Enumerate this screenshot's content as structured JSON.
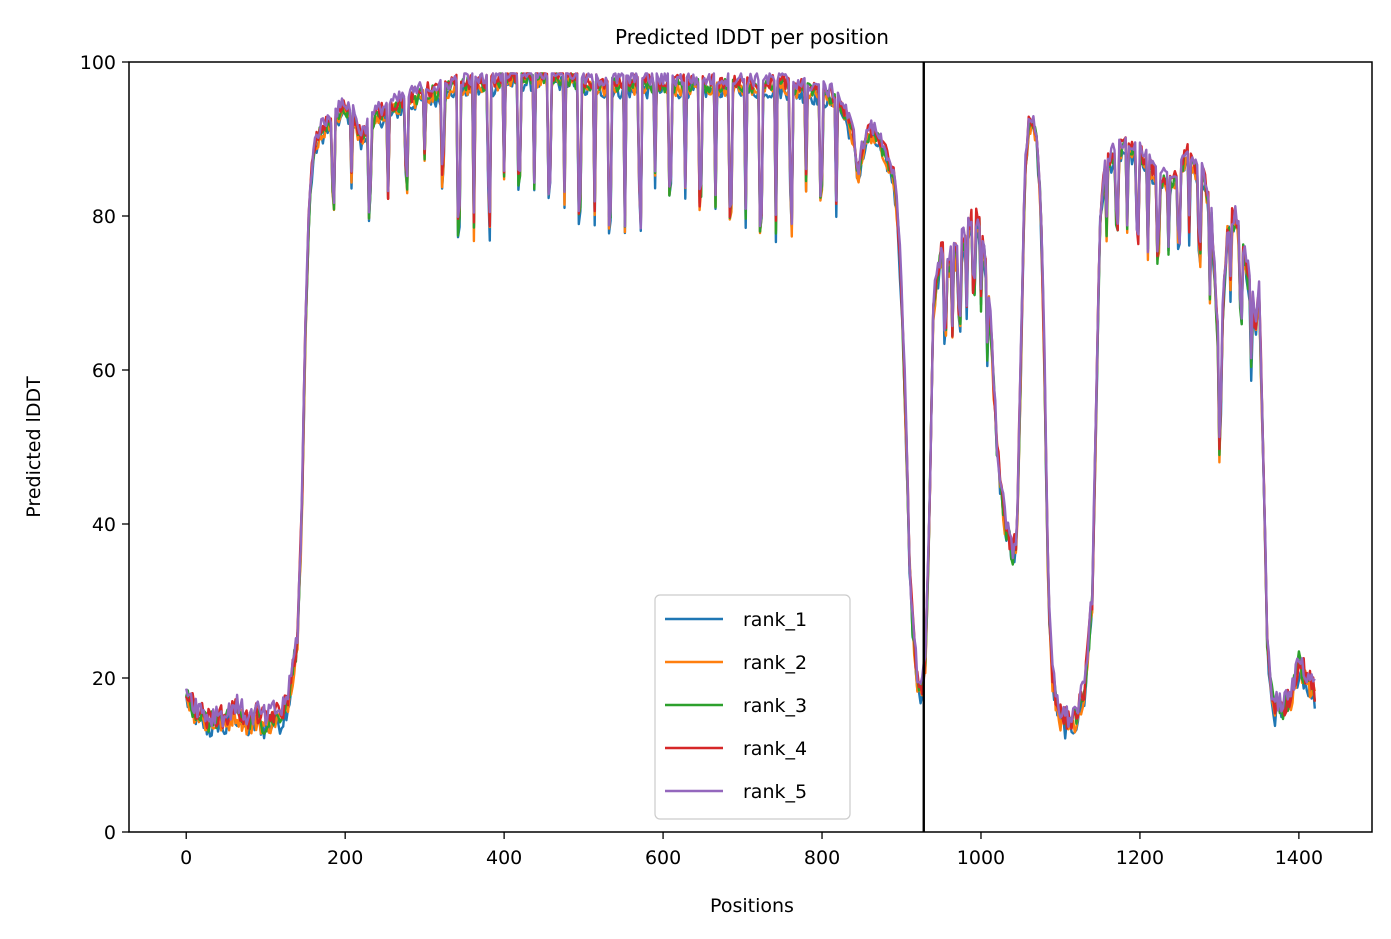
{
  "chart_data": {
    "type": "line",
    "title": "Predicted lDDT per position",
    "xlabel": "Positions",
    "ylabel": "Predicted lDDT",
    "xlim": [
      -72,
      1492
    ],
    "ylim": [
      0,
      100
    ],
    "xticks": [
      0,
      200,
      400,
      600,
      800,
      1000,
      1200,
      1400
    ],
    "yticks": [
      0,
      20,
      40,
      60,
      80,
      100
    ],
    "grid": false,
    "legend_position": "lower center",
    "vline_x": 928,
    "colors": {
      "rank_1": "#1f77b4",
      "rank_2": "#ff7f0e",
      "rank_3": "#2ca02c",
      "rank_4": "#d62728",
      "rank_5": "#9467bd",
      "vline": "#000000"
    },
    "profile": {
      "x": [
        0,
        5,
        10,
        20,
        30,
        40,
        50,
        60,
        70,
        80,
        90,
        100,
        110,
        120,
        130,
        140,
        145,
        150,
        155,
        160,
        165,
        170,
        180,
        190,
        200,
        210,
        220,
        240,
        260,
        280,
        300,
        320,
        340,
        360,
        380,
        400,
        420,
        440,
        460,
        480,
        500,
        550,
        600,
        650,
        700,
        750,
        800,
        820,
        830,
        840,
        845,
        850,
        860,
        870,
        880,
        890,
        895,
        900,
        905,
        910,
        915,
        920,
        925,
        930,
        935,
        940,
        945,
        950,
        960,
        970,
        980,
        990,
        1000,
        1010,
        1020,
        1030,
        1040,
        1045,
        1050,
        1055,
        1060,
        1065,
        1070,
        1075,
        1080,
        1085,
        1090,
        1095,
        1100,
        1110,
        1120,
        1130,
        1140,
        1145,
        1150,
        1155,
        1160,
        1170,
        1180,
        1200,
        1220,
        1240,
        1260,
        1270,
        1280,
        1290,
        1300,
        1310,
        1320,
        1330,
        1340,
        1345,
        1350,
        1355,
        1360,
        1365,
        1370,
        1380,
        1390,
        1400,
        1410,
        1420
      ],
      "y": [
        18,
        17,
        16,
        15,
        14,
        15,
        14,
        16,
        15,
        14,
        15,
        14,
        15,
        15,
        18,
        25,
        40,
        65,
        82,
        88,
        90,
        91,
        92,
        93,
        94,
        93,
        90,
        93,
        94,
        95,
        96,
        96,
        97,
        97,
        97,
        98,
        98,
        98,
        98,
        98,
        97,
        97,
        97,
        97,
        97,
        97,
        96,
        95,
        93,
        90,
        85,
        88,
        91,
        90,
        88,
        85,
        80,
        70,
        55,
        35,
        25,
        20,
        18,
        22,
        40,
        68,
        72,
        75,
        74,
        75,
        77,
        80,
        78,
        70,
        50,
        40,
        36,
        38,
        60,
        85,
        92,
        92,
        90,
        82,
        60,
        30,
        20,
        17,
        15,
        14,
        15,
        18,
        30,
        55,
        80,
        85,
        87,
        88,
        89,
        88,
        85,
        84,
        88,
        86,
        85,
        80,
        60,
        78,
        80,
        75,
        70,
        65,
        70,
        50,
        25,
        18,
        16,
        16,
        17,
        22,
        20,
        18
      ]
    },
    "series": [
      {
        "name": "rank_1"
      },
      {
        "name": "rank_2"
      },
      {
        "name": "rank_3"
      },
      {
        "name": "rank_4"
      },
      {
        "name": "rank_5"
      }
    ]
  }
}
